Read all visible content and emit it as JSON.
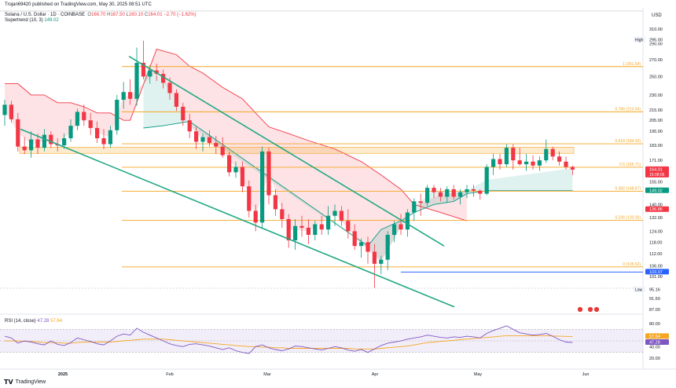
{
  "header": {
    "publisher": "Trojan69420 published on TradingView.com, May 30, 2025 08:51 UTC",
    "symbol": "Solana / U.S. Dollar · 1D · COINBASE",
    "o_label": "O",
    "o_value": "166.70",
    "h_label": "H",
    "h_value": "167.50",
    "l_label": "L",
    "l_value": "160.10",
    "c_label": "C",
    "c_value": "164.01",
    "change": "−2.70 (−1.62%)"
  },
  "supertrend": {
    "label": "Supertrend (10, 3)",
    "value": "149.02"
  },
  "rsi": {
    "label": "RSI (14, close)",
    "value1": "47.28",
    "value2": "57.64"
  },
  "brand": {
    "name": "TradingView"
  },
  "colors": {
    "up": "#089981",
    "down": "#f23645",
    "fib": "#f5a623",
    "channel": "#22a884",
    "support": "#2962ff",
    "rsi": "#7e57c2"
  },
  "chart_data": {
    "type": "candlestick",
    "title": "Solana / U.S. Dollar · 1D · COINBASE",
    "currency": "USD",
    "price_axis_ticks": [
      310.0,
      290.0,
      270.0,
      250.0,
      230.0,
      215.0,
      205.0,
      195.0,
      183.0,
      171.0,
      155.0,
      140.0,
      132.0,
      124.0,
      118.0,
      112.0,
      106.0,
      101.0,
      91.5,
      87.0
    ],
    "time_axis_labels": [
      "2025",
      "Feb",
      "Mar",
      "Apr",
      "May",
      "Jun"
    ],
    "ylim": [
      84,
      322
    ],
    "candles": [
      [
        210,
        225,
        200,
        220
      ],
      [
        220,
        224,
        203,
        206
      ],
      [
        206,
        212,
        178,
        182
      ],
      [
        182,
        190,
        176,
        179
      ],
      [
        179,
        195,
        173,
        188
      ],
      [
        188,
        193,
        176,
        181
      ],
      [
        181,
        197,
        178,
        192
      ],
      [
        192,
        195,
        181,
        184
      ],
      [
        184,
        189,
        178,
        183
      ],
      [
        183,
        193,
        180,
        189
      ],
      [
        189,
        206,
        186,
        200
      ],
      [
        200,
        216,
        196,
        213
      ],
      [
        213,
        220,
        200,
        205
      ],
      [
        205,
        212,
        192,
        198
      ],
      [
        198,
        204,
        185,
        189
      ],
      [
        189,
        197,
        180,
        184
      ],
      [
        184,
        200,
        181,
        196
      ],
      [
        196,
        230,
        192,
        225
      ],
      [
        225,
        244,
        216,
        233
      ],
      [
        233,
        247,
        220,
        226
      ],
      [
        226,
        285,
        219,
        266
      ],
      [
        266,
        294,
        247,
        250
      ],
      [
        250,
        263,
        242,
        257
      ],
      [
        257,
        265,
        245,
        253
      ],
      [
        253,
        258,
        237,
        243
      ],
      [
        243,
        249,
        225,
        232
      ],
      [
        232,
        236,
        214,
        218
      ],
      [
        218,
        222,
        200,
        205
      ],
      [
        205,
        211,
        189,
        195
      ],
      [
        195,
        199,
        180,
        186
      ],
      [
        186,
        193,
        178,
        190
      ],
      [
        190,
        196,
        182,
        185
      ],
      [
        185,
        191,
        176,
        182
      ],
      [
        182,
        190,
        173,
        175
      ],
      [
        175,
        178,
        159,
        162
      ],
      [
        162,
        170,
        158,
        166
      ],
      [
        166,
        170,
        148,
        152
      ],
      [
        152,
        156,
        132,
        136
      ],
      [
        136,
        140,
        124,
        129
      ],
      [
        129,
        182,
        126,
        178
      ],
      [
        178,
        181,
        140,
        146
      ],
      [
        146,
        150,
        133,
        137
      ],
      [
        137,
        141,
        126,
        131
      ],
      [
        131,
        134,
        115,
        119
      ],
      [
        119,
        131,
        114,
        127
      ],
      [
        127,
        133,
        121,
        126
      ],
      [
        126,
        131,
        117,
        122
      ],
      [
        122,
        130,
        119,
        128
      ],
      [
        128,
        133,
        122,
        125
      ],
      [
        125,
        139,
        122,
        133
      ],
      [
        133,
        140,
        127,
        136
      ],
      [
        136,
        139,
        127,
        130
      ],
      [
        130,
        137,
        120,
        124
      ],
      [
        124,
        128,
        114,
        116
      ],
      [
        116,
        120,
        110,
        118
      ],
      [
        118,
        121,
        107,
        113
      ],
      [
        113,
        117,
        96,
        107
      ],
      [
        107,
        111,
        102,
        109
      ],
      [
        109,
        124,
        104,
        122
      ],
      [
        122,
        130,
        118,
        128
      ],
      [
        128,
        134,
        122,
        125
      ],
      [
        125,
        137,
        121,
        135
      ],
      [
        135,
        144,
        130,
        142
      ],
      [
        142,
        147,
        133,
        141
      ],
      [
        141,
        153,
        139,
        151
      ],
      [
        151,
        153,
        144,
        148
      ],
      [
        148,
        151,
        142,
        145
      ],
      [
        145,
        152,
        141,
        150
      ],
      [
        150,
        153,
        143,
        145
      ],
      [
        145,
        150,
        140,
        148
      ],
      [
        148,
        153,
        144,
        150
      ],
      [
        150,
        153,
        145,
        149
      ],
      [
        149,
        150,
        143,
        147
      ],
      [
        147,
        168,
        146,
        166
      ],
      [
        166,
        176,
        160,
        172
      ],
      [
        172,
        176,
        164,
        168
      ],
      [
        168,
        184,
        166,
        181
      ],
      [
        181,
        184,
        164,
        171
      ],
      [
        171,
        181,
        167,
        168
      ],
      [
        168,
        176,
        163,
        170
      ],
      [
        170,
        175,
        164,
        167
      ],
      [
        167,
        174,
        163,
        171
      ],
      [
        171,
        188,
        169,
        180
      ],
      [
        180,
        182,
        171,
        174
      ],
      [
        174,
        178,
        167,
        170
      ],
      [
        170,
        174,
        164,
        166
      ],
      [
        166,
        167,
        160,
        164
      ]
    ],
    "supertrend_down": [
      [
        0,
        242
      ],
      [
        2,
        242
      ],
      [
        4,
        230
      ],
      [
        6,
        230
      ],
      [
        8,
        222
      ],
      [
        10,
        222
      ],
      [
        12,
        218
      ],
      [
        14,
        212
      ],
      [
        16,
        212
      ],
      [
        18,
        205
      ],
      [
        19,
        205
      ],
      [
        23,
        283
      ],
      [
        26,
        276
      ],
      [
        28,
        262
      ],
      [
        30,
        254
      ],
      [
        33,
        238
      ],
      [
        36,
        226
      ],
      [
        38,
        212
      ],
      [
        40,
        199
      ],
      [
        43,
        193
      ],
      [
        46,
        187
      ],
      [
        50,
        180
      ],
      [
        54,
        170
      ],
      [
        57,
        160
      ],
      [
        60,
        150
      ],
      [
        62,
        140
      ],
      [
        66,
        135
      ],
      [
        70,
        130
      ]
    ],
    "supertrend_up": [
      [
        21,
        198
      ],
      [
        24,
        200
      ],
      [
        26,
        202
      ],
      [
        28,
        204
      ],
      [
        55,
        116
      ],
      [
        57,
        125
      ],
      [
        60,
        130
      ],
      [
        62,
        135
      ],
      [
        65,
        140
      ],
      [
        68,
        142
      ],
      [
        70,
        147
      ],
      [
        73,
        149
      ],
      [
        86,
        149
      ]
    ],
    "fib_levels": [
      {
        "label": "1 (261.54)",
        "price": 261.54
      },
      {
        "label": "0.786 (213.04)",
        "price": 213.04
      },
      {
        "label": "0.618 (184.33)",
        "price": 184.33
      },
      {
        "label": "0.5 (165.71)",
        "price": 165.71
      },
      {
        "label": "0.382 (148.67)",
        "price": 148.67
      },
      {
        "label": "0.236 (130.26)",
        "price": 130.26
      },
      {
        "label": "0 (105.52)",
        "price": 105.52
      }
    ],
    "resistance_zone": [
      176.5,
      181.5
    ],
    "support_line": {
      "price": 103.07,
      "label": "103.07"
    },
    "channel_upper": [
      [
        274,
        158
      ],
      [
        116,
        568
      ]
    ],
    "channel_lower": [
      [
        197,
        26
      ],
      [
        88,
        578
      ]
    ],
    "price_labels": [
      {
        "text": "High",
        "price": 295.0,
        "value": "295.00"
      },
      {
        "text": "Low",
        "price": 95.16,
        "value": "95.16"
      },
      {
        "text": "",
        "price": 164.01,
        "value": "164.01",
        "sub": "15:08:05"
      },
      {
        "text": "",
        "price": 149.02,
        "value": "149.02"
      },
      {
        "text": "",
        "price": 136.86,
        "value": "136.86"
      }
    ],
    "rsi_axis_ticks": [
      80.0,
      40.0,
      20.0
    ],
    "rsi_values": [
      58,
      55,
      46,
      50,
      48,
      45,
      43,
      50,
      44,
      42,
      47,
      55,
      52,
      49,
      45,
      43,
      50,
      58,
      62,
      60,
      72,
      65,
      60,
      55,
      50,
      45,
      42,
      40,
      44,
      45,
      43,
      41,
      38,
      35,
      38,
      33,
      30,
      28,
      40,
      43,
      38,
      35,
      33,
      36,
      41,
      40,
      38,
      36,
      34,
      37,
      40,
      38,
      34,
      32,
      35,
      30,
      36,
      42,
      46,
      48,
      50,
      53,
      55,
      57,
      60,
      58,
      56,
      55,
      57,
      56,
      58,
      57,
      55,
      63,
      68,
      72,
      76,
      70,
      64,
      62,
      60,
      61,
      63,
      58,
      52,
      48,
      47.28
    ],
    "rsi_ma": [
      50,
      50,
      50,
      49,
      49,
      48,
      47,
      47,
      47,
      46,
      46,
      47,
      48,
      48,
      48,
      48,
      48,
      49,
      50,
      51,
      52,
      53,
      53,
      53,
      53,
      52,
      51,
      50,
      49,
      48,
      47,
      46,
      45,
      44,
      43,
      42,
      41,
      40,
      40,
      39,
      39,
      38,
      38,
      37,
      37,
      37,
      37,
      37,
      37,
      37,
      37,
      37,
      37,
      36,
      36,
      36,
      36,
      37,
      38,
      39,
      40,
      41,
      43,
      45,
      47,
      48,
      49,
      50,
      51,
      52,
      53,
      54,
      55,
      56,
      57,
      58,
      59,
      59,
      59,
      59,
      59,
      59,
      59,
      58.5,
      58,
      57.8,
      57.64
    ]
  }
}
